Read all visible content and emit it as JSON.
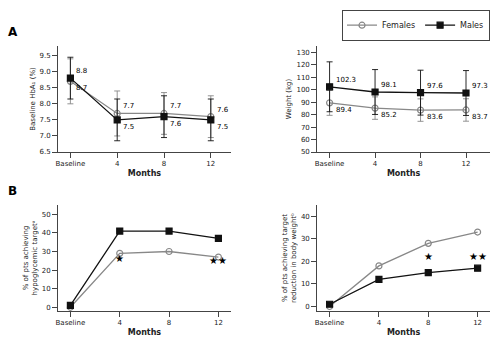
{
  "chart_data": [
    {
      "type": "line",
      "title": "A",
      "legend": "top",
      "grid": false,
      "data_labels": true,
      "xlabel": "Months",
      "ylabel": "Baseline HbA₁⁣ (%)",
      "categories": [
        "Baseline",
        "4",
        "8",
        "12"
      ],
      "series": [
        {
          "name": "Females",
          "color": "#888888",
          "marker": "circle-open",
          "values": [
            8.7,
            7.7,
            7.7,
            7.6
          ],
          "error": [
            0.7,
            0.7,
            0.65,
            0.65
          ]
        },
        {
          "name": "Males",
          "color": "#111111",
          "marker": "square",
          "values": [
            8.8,
            7.5,
            7.6,
            7.5
          ],
          "error": [
            0.65,
            0.65,
            0.65,
            0.65
          ]
        }
      ],
      "ylim": [
        6.5,
        9.8
      ],
      "yticks": [
        6.5,
        {
          "value": 7,
          "label": "7.0"
        },
        7.5,
        {
          "value": 8,
          "label": "8.0"
        },
        8.5,
        {
          "value": 9,
          "label": "9.0"
        },
        9.5
      ]
    },
    {
      "type": "line",
      "grid": false,
      "data_labels": true,
      "xlabel": "Months",
      "ylabel": "Weight (kg)",
      "categories": [
        "Baseline",
        "4",
        "8",
        "12"
      ],
      "series": [
        {
          "name": "Females",
          "color": "#888888",
          "marker": "circle-open",
          "values": [
            89.4,
            85.2,
            83.6,
            83.7
          ],
          "error": [
            10.0,
            9.0,
            9.0,
            9.0
          ]
        },
        {
          "name": "Males",
          "color": "#111111",
          "marker": "square",
          "values": [
            102.3,
            98.1,
            97.6,
            97.3
          ],
          "error": [
            20.0,
            18.0,
            18.0,
            18.0
          ]
        }
      ],
      "ylim": [
        50,
        135
      ],
      "yticks": [
        50,
        60,
        70,
        80,
        90,
        100,
        110,
        120,
        130
      ]
    },
    {
      "type": "line",
      "title": "B",
      "grid": false,
      "xlabel": "Months",
      "ylabel": "% of pts achieving\nhypoglycemic targetᵃ",
      "categories": [
        "Baseline",
        "4",
        "8",
        "12"
      ],
      "series": [
        {
          "name": "Females",
          "color": "#888888",
          "marker": "circle-open",
          "values": [
            0,
            29,
            30,
            27
          ]
        },
        {
          "name": "Males",
          "color": "#111111",
          "marker": "square",
          "values": [
            1,
            41,
            41,
            37
          ]
        }
      ],
      "ylim": [
        -2,
        55
      ],
      "yticks": [
        0,
        10,
        20,
        30,
        40,
        50
      ],
      "annotations": [
        {
          "x": "4",
          "y": 22,
          "text": "★"
        },
        {
          "x": "12",
          "y": 21,
          "text": "★★"
        }
      ]
    },
    {
      "type": "line",
      "grid": false,
      "xlabel": "Months",
      "ylabel": "% of pts achieving target\nreduction in body weightᵇ",
      "categories": [
        "Baseline",
        "4",
        "8",
        "12"
      ],
      "series": [
        {
          "name": "Females",
          "color": "#888888",
          "marker": "circle-open",
          "values": [
            0,
            18,
            28,
            33
          ]
        },
        {
          "name": "Males",
          "color": "#111111",
          "marker": "square",
          "values": [
            1,
            12,
            15,
            17
          ]
        }
      ],
      "ylim": [
        -2,
        45
      ],
      "yticks": [
        0,
        10,
        20,
        30,
        40
      ],
      "annotations": [
        {
          "x": "8",
          "y": 19,
          "text": "★"
        },
        {
          "x": "12",
          "y": 19,
          "text": "★★"
        }
      ]
    }
  ]
}
